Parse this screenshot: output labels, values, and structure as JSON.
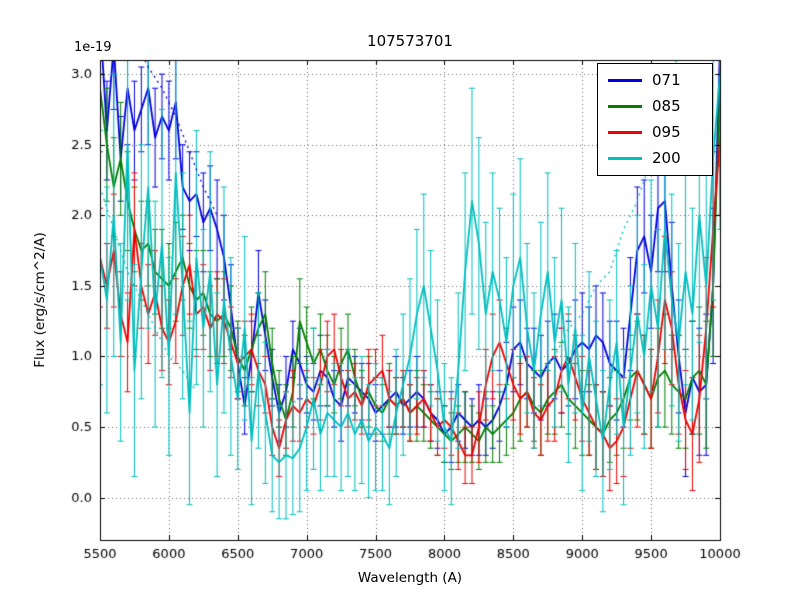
{
  "chart_data": {
    "type": "line",
    "title": "107573701",
    "xlabel": "Wavelength (A)",
    "ylabel": "Flux (erg/s/cm^2/A)",
    "offset_text": "1e-19",
    "xlim": [
      5500,
      10000
    ],
    "ylim": [
      -0.3,
      3.1
    ],
    "xticks": [
      5500,
      6000,
      6500,
      7000,
      7500,
      8000,
      8500,
      9000,
      9500,
      10000
    ],
    "yticks": [
      0.0,
      0.5,
      1.0,
      1.5,
      2.0,
      2.5,
      3.0
    ],
    "grid": true,
    "legend_position": "upper right",
    "x": [
      5500,
      5550,
      5600,
      5650,
      5700,
      5750,
      5800,
      5850,
      5900,
      5950,
      6000,
      6050,
      6100,
      6150,
      6200,
      6250,
      6300,
      6350,
      6400,
      6450,
      6500,
      6550,
      6600,
      6650,
      6700,
      6750,
      6800,
      6850,
      6900,
      6950,
      7000,
      7050,
      7100,
      7150,
      7200,
      7250,
      7300,
      7350,
      7400,
      7450,
      7500,
      7550,
      7600,
      7650,
      7700,
      7750,
      7800,
      7850,
      7900,
      7950,
      8000,
      8050,
      8100,
      8150,
      8200,
      8250,
      8300,
      8350,
      8400,
      8450,
      8500,
      8550,
      8600,
      8650,
      8700,
      8750,
      8800,
      8850,
      8900,
      8950,
      9000,
      9050,
      9100,
      9150,
      9200,
      9250,
      9300,
      9350,
      9400,
      9450,
      9500,
      9550,
      9600,
      9650,
      9700,
      9750,
      9800,
      9850,
      9900,
      9950,
      10000
    ],
    "series": [
      {
        "name": "071",
        "color": "#0000dd",
        "y": [
          3.4,
          2.6,
          3.2,
          2.4,
          2.9,
          2.6,
          2.75,
          2.9,
          2.55,
          2.7,
          2.6,
          2.8,
          2.2,
          2.1,
          2.15,
          1.95,
          2.05,
          1.9,
          1.7,
          1.35,
          0.95,
          0.65,
          1.0,
          1.45,
          1.15,
          0.85,
          0.6,
          0.75,
          1.05,
          0.95,
          0.8,
          0.75,
          0.9,
          0.85,
          0.7,
          0.65,
          0.85,
          0.8,
          0.75,
          0.7,
          0.6,
          0.65,
          0.7,
          0.75,
          0.65,
          0.7,
          0.75,
          0.7,
          0.6,
          0.55,
          0.45,
          0.5,
          0.6,
          0.55,
          0.5,
          0.55,
          0.5,
          0.55,
          0.65,
          0.8,
          1.05,
          1.1,
          0.95,
          0.9,
          0.85,
          0.95,
          1.0,
          0.9,
          0.95,
          1.05,
          1.1,
          1.05,
          1.15,
          1.1,
          0.95,
          0.9,
          0.85,
          1.3,
          1.75,
          1.85,
          1.6,
          2.05,
          2.1,
          1.5,
          1.0,
          0.6,
          0.85,
          0.75,
          0.8,
          1.5,
          3.2
        ],
        "yerr": [
          0.4,
          0.35,
          0.45,
          0.3,
          0.4,
          0.35,
          0.3,
          0.4,
          0.35,
          0.3,
          0.35,
          0.4,
          0.3,
          0.35,
          0.3,
          0.35,
          0.3,
          0.35,
          0.3,
          0.3,
          0.25,
          0.2,
          0.25,
          0.3,
          0.25,
          0.2,
          0.2,
          0.25,
          0.2,
          0.25,
          0.2,
          0.2,
          0.25,
          0.2,
          0.2,
          0.25,
          0.2,
          0.2,
          0.2,
          0.25,
          0.2,
          0.2,
          0.2,
          0.25,
          0.2,
          0.2,
          0.25,
          0.2,
          0.2,
          0.2,
          0.2,
          0.25,
          0.2,
          0.2,
          0.2,
          0.25,
          0.2,
          0.2,
          0.25,
          0.3,
          0.3,
          0.3,
          0.25,
          0.3,
          0.3,
          0.3,
          0.3,
          0.3,
          0.3,
          0.35,
          0.35,
          0.3,
          0.35,
          0.35,
          0.3,
          0.35,
          0.35,
          0.4,
          0.45,
          0.4,
          0.4,
          0.45,
          0.5,
          0.45,
          0.4,
          0.45,
          0.4,
          0.45,
          0.5,
          0.55,
          0.6
        ]
      },
      {
        "name": "085",
        "color": "#007f00",
        "y": [
          2.9,
          2.5,
          2.2,
          2.4,
          2.1,
          1.9,
          1.75,
          1.8,
          1.6,
          1.55,
          1.5,
          1.6,
          1.7,
          1.5,
          1.4,
          1.45,
          1.3,
          1.25,
          1.3,
          1.2,
          1.0,
          0.9,
          1.05,
          1.2,
          1.3,
          0.95,
          0.7,
          0.55,
          0.75,
          1.25,
          1.1,
          0.95,
          1.05,
          0.9,
          0.8,
          0.95,
          1.05,
          0.85,
          0.7,
          0.75,
          0.65,
          0.6,
          0.7,
          0.65,
          0.7,
          0.6,
          0.65,
          0.6,
          0.55,
          0.5,
          0.45,
          0.4,
          0.45,
          0.5,
          0.45,
          0.4,
          0.5,
          0.45,
          0.5,
          0.55,
          0.6,
          0.7,
          0.75,
          0.65,
          0.6,
          0.7,
          0.75,
          0.8,
          0.7,
          0.65,
          0.6,
          0.55,
          0.5,
          0.45,
          0.55,
          0.6,
          0.7,
          0.85,
          0.9,
          0.8,
          0.7,
          0.85,
          0.9,
          0.8,
          0.75,
          0.7,
          0.85,
          0.9,
          0.8,
          1.5,
          2.9
        ],
        "yerr": [
          0.45,
          0.4,
          0.35,
          0.4,
          0.35,
          0.3,
          0.35,
          0.3,
          0.3,
          0.35,
          0.3,
          0.35,
          0.3,
          0.3,
          0.35,
          0.3,
          0.3,
          0.3,
          0.3,
          0.3,
          0.25,
          0.25,
          0.3,
          0.25,
          0.3,
          0.25,
          0.2,
          0.25,
          0.25,
          0.3,
          0.25,
          0.25,
          0.25,
          0.25,
          0.2,
          0.25,
          0.25,
          0.2,
          0.2,
          0.25,
          0.2,
          0.2,
          0.25,
          0.2,
          0.2,
          0.2,
          0.25,
          0.2,
          0.2,
          0.2,
          0.2,
          0.2,
          0.2,
          0.25,
          0.2,
          0.2,
          0.25,
          0.2,
          0.25,
          0.25,
          0.25,
          0.3,
          0.25,
          0.25,
          0.3,
          0.25,
          0.3,
          0.3,
          0.25,
          0.3,
          0.3,
          0.25,
          0.3,
          0.3,
          0.3,
          0.3,
          0.35,
          0.3,
          0.35,
          0.35,
          0.35,
          0.35,
          0.4,
          0.35,
          0.4,
          0.35,
          0.4,
          0.45,
          0.45,
          0.5,
          0.55
        ]
      },
      {
        "name": "095",
        "color": "#ee0000",
        "y": [
          1.7,
          1.5,
          1.75,
          1.3,
          1.1,
          1.9,
          1.5,
          1.3,
          1.45,
          1.2,
          1.1,
          1.25,
          1.5,
          1.65,
          1.3,
          1.35,
          1.2,
          1.3,
          1.25,
          1.1,
          0.95,
          1.0,
          1.05,
          0.9,
          0.8,
          0.5,
          0.35,
          0.55,
          0.65,
          0.6,
          0.7,
          0.65,
          0.8,
          1.0,
          1.05,
          0.85,
          0.7,
          0.75,
          0.65,
          0.8,
          0.85,
          0.9,
          0.7,
          0.65,
          0.7,
          0.6,
          0.65,
          0.7,
          0.6,
          0.5,
          0.55,
          0.5,
          0.4,
          0.3,
          0.3,
          0.5,
          0.8,
          1.0,
          1.1,
          0.95,
          0.8,
          0.7,
          0.75,
          0.6,
          0.55,
          0.65,
          0.7,
          0.9,
          1.0,
          0.85,
          0.7,
          0.6,
          0.5,
          0.45,
          0.35,
          0.4,
          0.5,
          0.7,
          0.9,
          0.8,
          0.7,
          1.0,
          1.4,
          1.2,
          0.8,
          0.55,
          0.45,
          0.7,
          1.2,
          1.9,
          2.55
        ],
        "yerr": [
          0.35,
          0.3,
          0.4,
          0.3,
          0.35,
          0.4,
          0.3,
          0.35,
          0.3,
          0.3,
          0.3,
          0.3,
          0.35,
          0.35,
          0.3,
          0.3,
          0.3,
          0.3,
          0.3,
          0.25,
          0.25,
          0.25,
          0.25,
          0.25,
          0.2,
          0.2,
          0.2,
          0.2,
          0.25,
          0.2,
          0.2,
          0.2,
          0.25,
          0.25,
          0.25,
          0.2,
          0.2,
          0.2,
          0.2,
          0.25,
          0.2,
          0.25,
          0.2,
          0.2,
          0.2,
          0.2,
          0.2,
          0.2,
          0.2,
          0.2,
          0.2,
          0.2,
          0.2,
          0.2,
          0.2,
          0.25,
          0.25,
          0.3,
          0.3,
          0.25,
          0.25,
          0.25,
          0.25,
          0.25,
          0.25,
          0.25,
          0.3,
          0.3,
          0.3,
          0.3,
          0.3,
          0.3,
          0.3,
          0.3,
          0.3,
          0.3,
          0.35,
          0.35,
          0.4,
          0.35,
          0.35,
          0.4,
          0.45,
          0.4,
          0.35,
          0.35,
          0.4,
          0.45,
          0.5,
          0.55,
          0.55
        ]
      },
      {
        "name": "200",
        "color": "#00bfbf",
        "y": [
          1.7,
          1.4,
          2.0,
          1.1,
          2.5,
          0.9,
          1.6,
          2.2,
          1.3,
          1.8,
          1.0,
          2.3,
          1.5,
          0.6,
          1.7,
          1.2,
          1.6,
          0.8,
          1.4,
          1.0,
          0.7,
          1.2,
          0.4,
          0.9,
          0.6,
          0.3,
          0.25,
          0.3,
          0.28,
          0.35,
          0.5,
          0.7,
          0.45,
          0.6,
          0.55,
          0.5,
          0.6,
          0.45,
          0.55,
          0.4,
          0.5,
          0.45,
          0.35,
          0.6,
          0.8,
          1.0,
          1.3,
          1.5,
          1.2,
          0.9,
          0.5,
          0.4,
          0.9,
          1.6,
          2.1,
          1.8,
          1.3,
          1.6,
          1.4,
          1.1,
          1.5,
          1.7,
          1.2,
          0.9,
          1.3,
          1.6,
          1.1,
          1.4,
          0.8,
          1.2,
          0.6,
          1.0,
          0.7,
          0.4,
          0.8,
          1.1,
          0.5,
          0.9,
          1.3,
          1.0,
          1.5,
          1.2,
          1.9,
          1.4,
          1.1,
          1.6,
          1.3,
          2.0,
          1.5,
          2.4,
          3.0
        ],
        "yerr": [
          0.9,
          0.8,
          1.0,
          0.7,
          1.1,
          0.75,
          0.9,
          1.0,
          0.8,
          0.95,
          0.7,
          1.0,
          0.8,
          0.65,
          0.9,
          0.7,
          0.85,
          0.65,
          0.8,
          0.7,
          0.5,
          0.65,
          0.45,
          0.55,
          0.5,
          0.4,
          0.4,
          0.45,
          0.4,
          0.45,
          0.45,
          0.5,
          0.4,
          0.45,
          0.4,
          0.45,
          0.45,
          0.4,
          0.45,
          0.4,
          0.45,
          0.4,
          0.4,
          0.45,
          0.5,
          0.55,
          0.6,
          0.65,
          0.55,
          0.5,
          0.45,
          0.45,
          0.55,
          0.7,
          0.8,
          0.75,
          0.65,
          0.7,
          0.65,
          0.6,
          0.65,
          0.7,
          0.6,
          0.55,
          0.65,
          0.7,
          0.6,
          0.65,
          0.55,
          0.6,
          0.55,
          0.6,
          0.55,
          0.5,
          0.6,
          0.65,
          0.55,
          0.6,
          0.7,
          0.65,
          0.75,
          0.7,
          0.85,
          0.75,
          0.7,
          0.8,
          0.75,
          0.9,
          0.8,
          1.0,
          1.1
        ]
      }
    ],
    "dotted_overlays": [
      {
        "color": "#00bfbf",
        "x": [
          8700,
          8800,
          8900,
          9000,
          9100,
          9200,
          9300,
          9400,
          9500,
          9600,
          9700
        ],
        "y": [
          0.9,
          1.0,
          1.2,
          1.3,
          1.5,
          1.6,
          1.9,
          2.1,
          2.4,
          2.8,
          3.15
        ]
      },
      {
        "color": "#0000dd",
        "x": [
          5750,
          5850,
          5950,
          6050,
          6150,
          6250,
          6350
        ],
        "y": [
          3.25,
          3.05,
          2.9,
          2.7,
          2.45,
          2.2,
          2.0
        ]
      },
      {
        "color": "#00bfbf",
        "x": [
          5500,
          5600,
          5700,
          5800,
          5900,
          6000,
          6100,
          6200
        ],
        "y": [
          2.2,
          1.9,
          1.6,
          1.4,
          1.2,
          1.0,
          0.9,
          0.75
        ]
      }
    ]
  }
}
